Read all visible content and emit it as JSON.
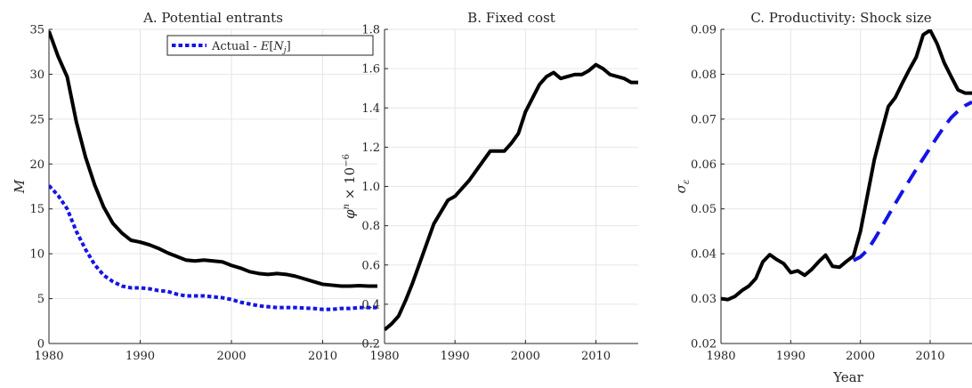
{
  "figure": {
    "x_shared_label": "Year"
  },
  "chart_data": [
    {
      "type": "line",
      "title": "A. Potential entrants",
      "xlabel": "",
      "ylabel": "M",
      "xlim": [
        1980,
        2016
      ],
      "ylim": [
        0,
        35
      ],
      "xticks": [
        1980,
        1990,
        2000,
        2010
      ],
      "yticks": [
        0,
        5,
        10,
        15,
        20,
        25,
        30,
        35
      ],
      "grid": true,
      "legend_position": "top-right",
      "series": [
        {
          "name": "",
          "color": "#000000",
          "dash": "solid",
          "x": [
            1980,
            1981,
            1982,
            1983,
            1984,
            1985,
            1986,
            1987,
            1988,
            1989,
            1990,
            1991,
            1992,
            1993,
            1994,
            1995,
            1996,
            1997,
            1998,
            1999,
            2000,
            2001,
            2002,
            2003,
            2004,
            2005,
            2006,
            2007,
            2008,
            2009,
            2010,
            2011,
            2012,
            2013,
            2014,
            2015,
            2016
          ],
          "y": [
            34.8,
            32.0,
            29.7,
            24.7,
            20.8,
            17.7,
            15.2,
            13.4,
            12.3,
            11.5,
            11.3,
            11.0,
            10.6,
            10.1,
            9.7,
            9.3,
            9.2,
            9.3,
            9.2,
            9.1,
            8.7,
            8.4,
            8.0,
            7.8,
            7.7,
            7.8,
            7.7,
            7.5,
            7.2,
            6.9,
            6.6,
            6.5,
            6.4,
            6.4,
            6.45,
            6.4,
            6.4
          ]
        },
        {
          "name": "Actual - E[N_j]",
          "color": "#1414e6",
          "dash": "dotted",
          "x": [
            1980,
            1981,
            1982,
            1983,
            1984,
            1985,
            1986,
            1987,
            1988,
            1989,
            1990,
            1991,
            1992,
            1993,
            1994,
            1995,
            1996,
            1997,
            1998,
            1999,
            2000,
            2001,
            2002,
            2003,
            2004,
            2005,
            2006,
            2007,
            2008,
            2009,
            2010,
            2011,
            2012,
            2013,
            2014,
            2015,
            2016
          ],
          "y": [
            17.6,
            16.5,
            15.0,
            12.5,
            10.5,
            8.8,
            7.6,
            6.9,
            6.4,
            6.2,
            6.2,
            6.1,
            5.9,
            5.8,
            5.5,
            5.3,
            5.3,
            5.3,
            5.2,
            5.1,
            4.9,
            4.6,
            4.4,
            4.2,
            4.1,
            4.0,
            4.0,
            4.0,
            3.95,
            3.9,
            3.8,
            3.8,
            3.9,
            3.9,
            4.0,
            4.0,
            4.0
          ]
        }
      ]
    },
    {
      "type": "line",
      "title": "B. Fixed cost",
      "xlabel": "",
      "ylabel": "φ^n × 10^−6",
      "xlim": [
        1980,
        2016
      ],
      "ylim": [
        0.2,
        1.8
      ],
      "xticks": [
        1980,
        1990,
        2000,
        2010
      ],
      "yticks": [
        0.2,
        0.4,
        0.6,
        0.8,
        1.0,
        1.2,
        1.4,
        1.6,
        1.8
      ],
      "grid": true,
      "series": [
        {
          "name": "",
          "color": "#000000",
          "dash": "solid",
          "x": [
            1980,
            1981,
            1982,
            1983,
            1984,
            1985,
            1986,
            1987,
            1988,
            1989,
            1990,
            1991,
            1992,
            1993,
            1994,
            1995,
            1996,
            1997,
            1998,
            1999,
            2000,
            2001,
            2002,
            2003,
            2004,
            2005,
            2006,
            2007,
            2008,
            2009,
            2010,
            2011,
            2012,
            2013,
            2014,
            2015,
            2016
          ],
          "y": [
            0.27,
            0.3,
            0.34,
            0.42,
            0.51,
            0.61,
            0.71,
            0.81,
            0.87,
            0.93,
            0.95,
            0.99,
            1.03,
            1.08,
            1.13,
            1.18,
            1.18,
            1.18,
            1.22,
            1.27,
            1.38,
            1.45,
            1.52,
            1.56,
            1.58,
            1.55,
            1.56,
            1.57,
            1.57,
            1.59,
            1.62,
            1.6,
            1.57,
            1.56,
            1.55,
            1.53,
            1.53
          ]
        }
      ]
    },
    {
      "type": "line",
      "title": "C. Productivity: Shock size",
      "xlabel": "Year",
      "ylabel": "σ_ε",
      "xlim": [
        1980,
        2016
      ],
      "ylim": [
        0.02,
        0.09
      ],
      "xticks": [
        1980,
        1990,
        2000,
        2010
      ],
      "yticks": [
        0.02,
        0.03,
        0.04,
        0.05,
        0.06,
        0.07,
        0.08,
        0.09
      ],
      "grid": true,
      "series": [
        {
          "name": "",
          "color": "#000000",
          "dash": "solid",
          "x": [
            1980,
            1981,
            1982,
            1983,
            1984,
            1985,
            1986,
            1987,
            1988,
            1989,
            1990,
            1991,
            1992,
            1993,
            1994,
            1995,
            1996,
            1997,
            1998,
            1999,
            2000,
            2001,
            2002,
            2003,
            2004,
            2005,
            2006,
            2007,
            2008,
            2009,
            2010,
            2011,
            2012,
            2013,
            2014,
            2015,
            2016
          ],
          "y": [
            0.03,
            0.0298,
            0.0305,
            0.0318,
            0.0328,
            0.0345,
            0.0382,
            0.0398,
            0.0387,
            0.0378,
            0.0358,
            0.0362,
            0.0352,
            0.0365,
            0.0382,
            0.0397,
            0.0372,
            0.037,
            0.0383,
            0.0395,
            0.045,
            0.053,
            0.061,
            0.067,
            0.0728,
            0.0748,
            0.078,
            0.081,
            0.0838,
            0.0888,
            0.0898,
            0.0868,
            0.0826,
            0.0795,
            0.0765,
            0.0758,
            0.0758
          ]
        },
        {
          "name": "",
          "color": "#1414e6",
          "dash": "dashed",
          "x": [
            1999,
            2000,
            2001,
            2002,
            2003,
            2004,
            2005,
            2006,
            2007,
            2008,
            2009,
            2010,
            2011,
            2012,
            2013,
            2014,
            2015,
            2016
          ],
          "y": [
            0.0385,
            0.0393,
            0.0408,
            0.0432,
            0.0458,
            0.0485,
            0.0512,
            0.0538,
            0.0563,
            0.0588,
            0.0612,
            0.0636,
            0.066,
            0.0683,
            0.0703,
            0.0718,
            0.073,
            0.0738
          ]
        }
      ]
    }
  ]
}
